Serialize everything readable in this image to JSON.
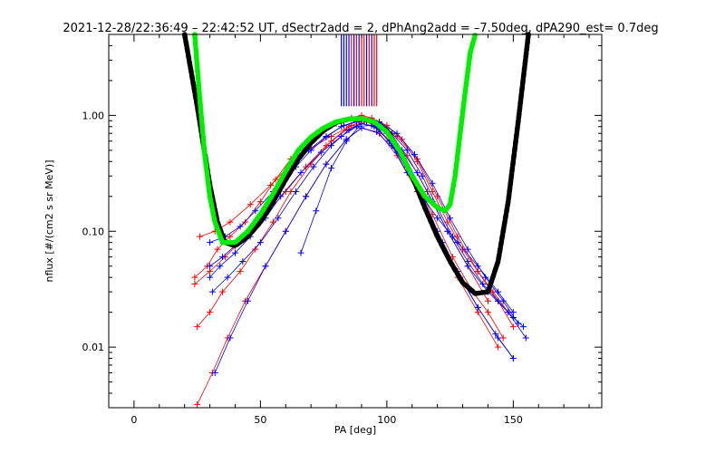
{
  "chart_data": {
    "type": "scatter",
    "title": "2021-12-28/22:36:49 – 22:42:52 UT, dSectr2add = 2, dPhAng2add = –7.50deg, dPA290_est=   0.7deg",
    "xlabel": "PA [deg]",
    "ylabel": "nflux [#/(cm2 s sr MeV)]",
    "xlim": [
      -10,
      185
    ],
    "ylim": [
      0.003,
      5
    ],
    "yscale": "log",
    "grid": false,
    "x_ticks": [
      0,
      50,
      100,
      150
    ],
    "x_tick_labels": [
      "0",
      "50",
      "100",
      "150"
    ],
    "y_ticks": [
      0.01,
      0.1,
      1.0
    ],
    "y_tick_labels": [
      "0.01",
      "0.10",
      "1.00"
    ],
    "colors": {
      "red_series": "#ff0000",
      "blue_series": "#0000ff",
      "fit_black": "#000000",
      "fit_green": "#00ee00"
    },
    "fit_black": {
      "x": [
        20,
        25,
        30,
        33,
        36,
        40,
        45,
        50,
        55,
        60,
        65,
        70,
        75,
        80,
        85,
        90,
        95,
        100,
        105,
        110,
        115,
        120,
        125,
        130,
        135,
        140,
        144,
        148,
        152,
        156
      ],
      "y": [
        5.0,
        1.2,
        0.25,
        0.12,
        0.08,
        0.075,
        0.09,
        0.12,
        0.18,
        0.28,
        0.42,
        0.58,
        0.74,
        0.87,
        0.93,
        0.94,
        0.88,
        0.74,
        0.5,
        0.3,
        0.16,
        0.09,
        0.055,
        0.036,
        0.029,
        0.03,
        0.055,
        0.18,
        0.9,
        5.0
      ]
    },
    "fit_green": {
      "x": [
        24,
        26,
        28,
        30,
        32,
        35,
        40,
        45,
        50,
        55,
        60,
        65,
        70,
        75,
        80,
        85,
        90,
        95,
        100,
        105,
        110,
        115,
        120,
        123,
        125,
        127,
        129,
        131,
        133,
        135
      ],
      "y": [
        5.0,
        1.4,
        0.45,
        0.2,
        0.12,
        0.08,
        0.08,
        0.1,
        0.14,
        0.21,
        0.33,
        0.5,
        0.65,
        0.78,
        0.88,
        0.93,
        0.94,
        0.88,
        0.72,
        0.5,
        0.3,
        0.2,
        0.16,
        0.15,
        0.17,
        0.3,
        0.7,
        1.6,
        3.5,
        5.0
      ]
    },
    "vertical_markers": {
      "red": [
        86,
        88,
        90,
        91,
        93,
        95,
        96
      ],
      "blue": [
        82,
        83,
        84,
        85,
        87,
        89,
        92,
        94
      ]
    },
    "series": [
      {
        "color": "red",
        "x": [
          24,
          29,
          33,
          38,
          44,
          50,
          56,
          62,
          68,
          74,
          80,
          86,
          90,
          94,
          100,
          106,
          112,
          118,
          124,
          130,
          136,
          142,
          148
        ],
        "y": [
          0.04,
          0.05,
          0.07,
          0.09,
          0.12,
          0.18,
          0.28,
          0.42,
          0.58,
          0.72,
          0.85,
          0.95,
          1.0,
          0.95,
          0.82,
          0.62,
          0.4,
          0.22,
          0.12,
          0.07,
          0.045,
          0.03,
          0.02
        ]
      },
      {
        "color": "red",
        "x": [
          25,
          30,
          35,
          42,
          48,
          55,
          62,
          70,
          78,
          85,
          90,
          96,
          103,
          110,
          118,
          126,
          134,
          140,
          146
        ],
        "y": [
          0.015,
          0.02,
          0.03,
          0.045,
          0.07,
          0.12,
          0.22,
          0.38,
          0.6,
          0.8,
          0.85,
          0.78,
          0.55,
          0.3,
          0.14,
          0.06,
          0.03,
          0.02,
          0.012
        ]
      },
      {
        "color": "red",
        "x": [
          25,
          31,
          37,
          44,
          52,
          60,
          68,
          76,
          84,
          90,
          97,
          104,
          112,
          120,
          128,
          136,
          144
        ],
        "y": [
          0.0032,
          0.006,
          0.012,
          0.025,
          0.05,
          0.1,
          0.2,
          0.38,
          0.62,
          0.78,
          0.7,
          0.45,
          0.22,
          0.09,
          0.04,
          0.02,
          0.01
        ]
      },
      {
        "color": "red",
        "x": [
          26,
          32,
          38,
          46,
          54,
          62,
          70,
          78,
          86,
          91,
          97,
          104,
          112,
          120,
          128,
          136,
          144,
          150
        ],
        "y": [
          0.09,
          0.1,
          0.12,
          0.17,
          0.25,
          0.38,
          0.52,
          0.66,
          0.82,
          0.9,
          0.86,
          0.66,
          0.42,
          0.2,
          0.09,
          0.045,
          0.025,
          0.015
        ]
      },
      {
        "color": "red",
        "x": [
          24,
          30,
          36,
          44,
          52,
          60,
          68,
          76,
          84,
          92,
          100,
          108,
          116,
          124,
          132,
          140
        ],
        "y": [
          0.035,
          0.045,
          0.06,
          0.09,
          0.14,
          0.22,
          0.36,
          0.55,
          0.75,
          0.88,
          0.72,
          0.45,
          0.22,
          0.1,
          0.05,
          0.025
        ]
      },
      {
        "color": "blue",
        "x": [
          30,
          35,
          40,
          46,
          52,
          58,
          64,
          70,
          76,
          82,
          88,
          92,
          96,
          102,
          108,
          114,
          120,
          126,
          132,
          138,
          144,
          150,
          154
        ],
        "y": [
          0.05,
          0.06,
          0.075,
          0.1,
          0.15,
          0.24,
          0.36,
          0.5,
          0.65,
          0.8,
          0.88,
          0.9,
          0.86,
          0.7,
          0.5,
          0.3,
          0.16,
          0.09,
          0.055,
          0.035,
          0.025,
          0.018,
          0.015
        ]
      },
      {
        "color": "blue",
        "x": [
          31,
          37,
          43,
          50,
          57,
          64,
          71,
          78,
          85,
          90,
          95,
          101,
          108,
          115,
          122,
          129,
          136,
          143,
          150
        ],
        "y": [
          0.03,
          0.04,
          0.055,
          0.08,
          0.13,
          0.22,
          0.36,
          0.55,
          0.75,
          0.85,
          0.8,
          0.6,
          0.36,
          0.18,
          0.08,
          0.04,
          0.022,
          0.013,
          0.008
        ]
      },
      {
        "color": "blue",
        "x": [
          30,
          36,
          42,
          48,
          55,
          62,
          69,
          76,
          83,
          90,
          97,
          104,
          111,
          118,
          125,
          132,
          139,
          146,
          152
        ],
        "y": [
          0.08,
          0.09,
          0.11,
          0.15,
          0.22,
          0.34,
          0.5,
          0.66,
          0.82,
          0.92,
          0.88,
          0.7,
          0.46,
          0.26,
          0.13,
          0.07,
          0.04,
          0.025,
          0.016
        ]
      },
      {
        "color": "blue",
        "x": [
          32,
          38,
          45,
          52,
          60,
          68,
          76,
          84,
          90,
          96,
          104,
          112,
          120,
          128,
          136,
          144,
          150
        ],
        "y": [
          0.006,
          0.012,
          0.025,
          0.05,
          0.1,
          0.2,
          0.38,
          0.62,
          0.78,
          0.72,
          0.48,
          0.24,
          0.1,
          0.045,
          0.022,
          0.012,
          0.008
        ]
      },
      {
        "color": "blue",
        "x": [
          66,
          72,
          78,
          84,
          90,
          96,
          102,
          108,
          114,
          120,
          128,
          136,
          144,
          150
        ],
        "y": [
          0.065,
          0.15,
          0.35,
          0.6,
          0.85,
          0.8,
          0.55,
          0.32,
          0.2,
          0.13,
          0.08,
          0.05,
          0.03,
          0.02
        ]
      },
      {
        "color": "blue",
        "x": [
          30,
          34,
          40,
          46,
          52,
          58,
          66,
          74,
          82,
          88,
          94,
          100,
          106,
          112,
          118,
          124,
          132,
          140,
          148,
          155
        ],
        "y": [
          0.04,
          0.05,
          0.065,
          0.09,
          0.13,
          0.2,
          0.32,
          0.48,
          0.66,
          0.8,
          0.82,
          0.7,
          0.5,
          0.32,
          0.18,
          0.1,
          0.05,
          0.03,
          0.02,
          0.012
        ]
      }
    ]
  }
}
